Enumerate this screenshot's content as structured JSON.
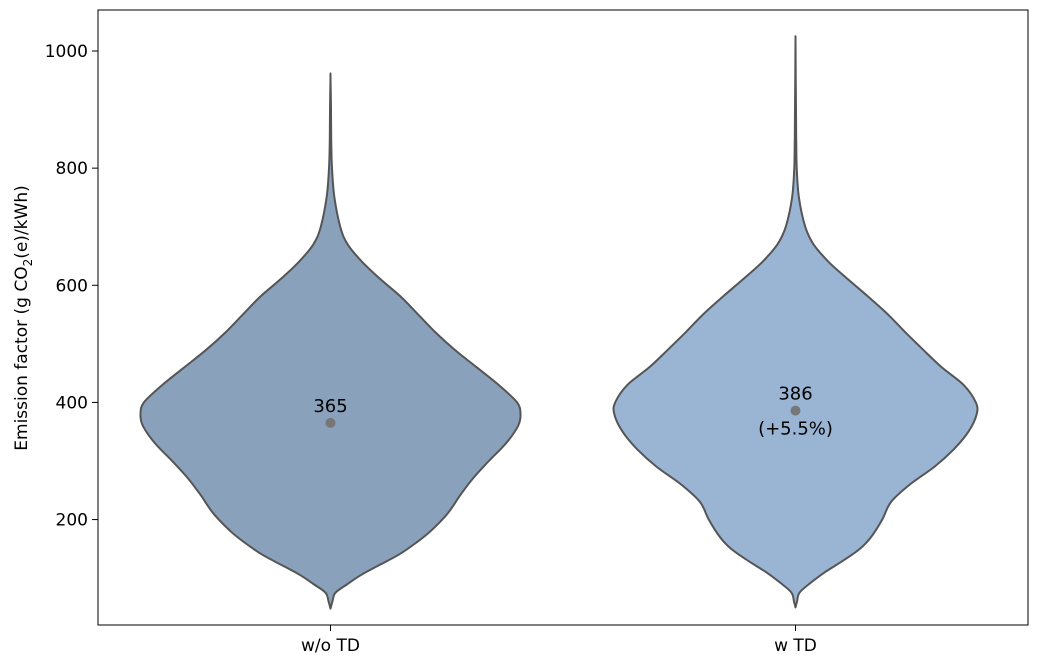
{
  "chart_data": {
    "type": "violin",
    "categories": [
      "w/o TD",
      "w TD"
    ],
    "ylabel_main": "Emission factor (g CO",
    "ylabel_sub": "2",
    "ylabel_rest": "(e)/kWh)",
    "ylim": [
      20,
      1070
    ],
    "yticks": [
      200,
      400,
      600,
      800,
      1000
    ],
    "grid": false,
    "colors": [
      "#8aa1bb",
      "#9ab4d3"
    ],
    "outline_color": "#555555",
    "marker_color": "#777777",
    "series": [
      {
        "category": "w/o TD",
        "median": 365,
        "median_label": "365",
        "min": 48,
        "max": 955,
        "density": [
          [
            48,
            0
          ],
          [
            60,
            4
          ],
          [
            75,
            10
          ],
          [
            90,
            35
          ],
          [
            105,
            62
          ],
          [
            120,
            95
          ],
          [
            140,
            140
          ],
          [
            160,
            175
          ],
          [
            180,
            205
          ],
          [
            210,
            240
          ],
          [
            240,
            265
          ],
          [
            270,
            292
          ],
          [
            300,
            325
          ],
          [
            330,
            360
          ],
          [
            360,
            385
          ],
          [
            380,
            390
          ],
          [
            400,
            383
          ],
          [
            430,
            345
          ],
          [
            460,
            300
          ],
          [
            490,
            255
          ],
          [
            520,
            215
          ],
          [
            550,
            180
          ],
          [
            580,
            145
          ],
          [
            610,
            103
          ],
          [
            640,
            65
          ],
          [
            670,
            35
          ],
          [
            700,
            20
          ],
          [
            750,
            8
          ],
          [
            800,
            3
          ],
          [
            850,
            1.5
          ],
          [
            900,
            1
          ],
          [
            955,
            0
          ]
        ]
      },
      {
        "category": "w TD",
        "median": 386,
        "median_label": "386",
        "change_label": "(+5.5%)",
        "min": 50,
        "max": 1018,
        "density": [
          [
            50,
            0
          ],
          [
            60,
            3
          ],
          [
            75,
            8
          ],
          [
            90,
            28
          ],
          [
            110,
            60
          ],
          [
            130,
            98
          ],
          [
            150,
            132
          ],
          [
            170,
            155
          ],
          [
            200,
            178
          ],
          [
            230,
            196
          ],
          [
            260,
            235
          ],
          [
            290,
            285
          ],
          [
            320,
            325
          ],
          [
            350,
            355
          ],
          [
            380,
            372
          ],
          [
            400,
            370
          ],
          [
            430,
            345
          ],
          [
            460,
            300
          ],
          [
            490,
            262
          ],
          [
            520,
            225
          ],
          [
            550,
            190
          ],
          [
            580,
            150
          ],
          [
            610,
            108
          ],
          [
            640,
            68
          ],
          [
            670,
            37
          ],
          [
            700,
            20
          ],
          [
            750,
            7
          ],
          [
            800,
            2.5
          ],
          [
            850,
            1.5
          ],
          [
            900,
            1
          ],
          [
            960,
            0.5
          ],
          [
            1018,
            0
          ]
        ]
      }
    ]
  }
}
